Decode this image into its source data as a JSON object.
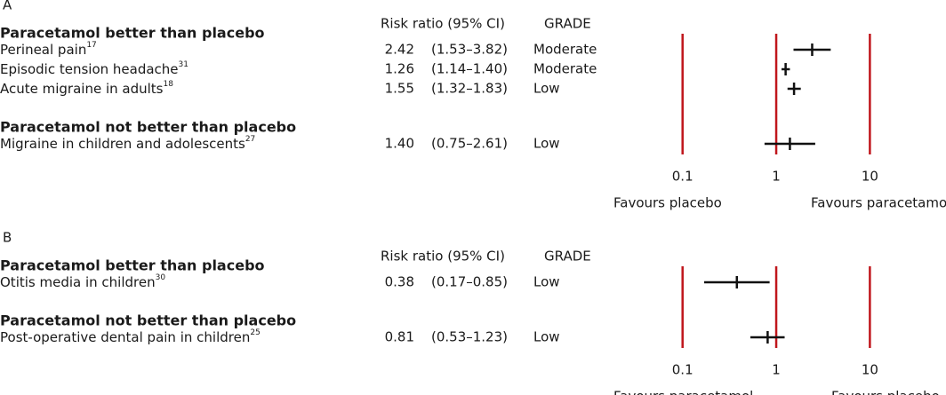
{
  "chart_data": [
    {
      "type": "forest",
      "panel": "A",
      "value_header": "Risk ratio (95% CI)",
      "grade_header": "GRADE",
      "xscale": "log",
      "xlim": [
        0.05,
        50
      ],
      "xticks": [
        0.1,
        1,
        10
      ],
      "line_color": "#c0161c",
      "mark_color": "#111111",
      "x_label_left": "Favours placebo",
      "x_label_right": "Favours paracetamol",
      "groups": [
        {
          "title": "Paracetamol better than placebo",
          "categories": [
            "Perineal pain",
            "Episodic tension headache",
            "Acute migraine in adults"
          ],
          "superscripts": [
            "17",
            "31",
            "18"
          ],
          "values": [
            2.42,
            1.26,
            1.55
          ],
          "value_labels": [
            "2.42",
            "1.26",
            "1.55"
          ],
          "ci_low": [
            1.53,
            1.14,
            1.32
          ],
          "ci_high": [
            3.82,
            1.4,
            1.83
          ],
          "ci_labels": [
            "(1.53–3.82)",
            "(1.14–1.40)",
            "(1.32–1.83)"
          ],
          "grades": [
            "Moderate",
            "Moderate",
            "Low"
          ]
        },
        {
          "title": "Paracetamol not better than placebo",
          "categories": [
            "Migraine in children and adolescents"
          ],
          "superscripts": [
            "27"
          ],
          "values": [
            1.4
          ],
          "value_labels": [
            "1.40"
          ],
          "ci_low": [
            0.75
          ],
          "ci_high": [
            2.61
          ],
          "ci_labels": [
            "(0.75–2.61)"
          ],
          "grades": [
            "Low"
          ]
        }
      ]
    },
    {
      "type": "forest",
      "panel": "B",
      "value_header": "Risk ratio (95% CI)",
      "grade_header": "GRADE",
      "xscale": "log",
      "xlim": [
        0.05,
        50
      ],
      "xticks": [
        0.1,
        1,
        10
      ],
      "line_color": "#c0161c",
      "mark_color": "#111111",
      "x_label_left": "Favours paracetamol",
      "x_label_right": "Favours placebo",
      "groups": [
        {
          "title": "Paracetamol better than placebo",
          "categories": [
            "Otitis media in children"
          ],
          "superscripts": [
            "30"
          ],
          "values": [
            0.38
          ],
          "value_labels": [
            "0.38"
          ],
          "ci_low": [
            0.17
          ],
          "ci_high": [
            0.85
          ],
          "ci_labels": [
            "(0.17–0.85)"
          ],
          "grades": [
            "Low"
          ]
        },
        {
          "title": "Paracetamol not better than placebo",
          "categories": [
            "Post-operative dental pain in children"
          ],
          "superscripts": [
            "25"
          ],
          "values": [
            0.81
          ],
          "value_labels": [
            "0.81"
          ],
          "ci_low": [
            0.53
          ],
          "ci_high": [
            1.23
          ],
          "ci_labels": [
            "(0.53–1.23)"
          ],
          "grades": [
            "Low"
          ]
        }
      ]
    }
  ]
}
